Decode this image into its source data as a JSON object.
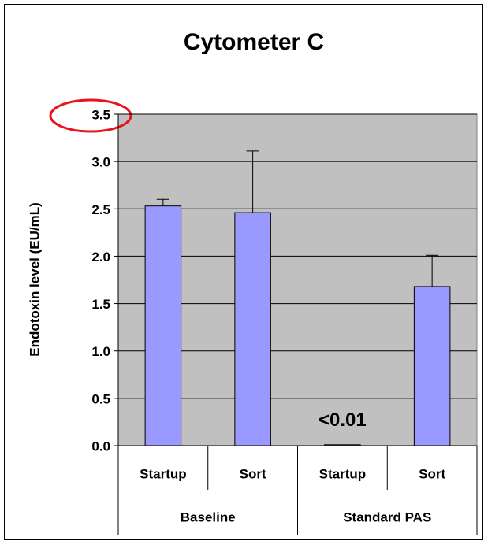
{
  "chart_data": {
    "type": "bar",
    "title": "Cytometer C",
    "y_label": "Endotoxin level (EU/mL)",
    "categories": [
      "Startup",
      "Sort",
      "Startup",
      "Sort"
    ],
    "groups": [
      "Baseline",
      "Standard PAS"
    ],
    "values": [
      2.53,
      2.46,
      0.01,
      1.68
    ],
    "errors": [
      0.07,
      0.65,
      null,
      0.33
    ],
    "value_labels": [
      null,
      null,
      "<0.01",
      null
    ],
    "color": "#9999ff",
    "ylim": [
      0,
      3.5
    ],
    "yticks": [
      {
        "value": 0,
        "label": "0.0"
      },
      {
        "value": 0.5,
        "label": "0.5"
      },
      {
        "value": 1,
        "label": "1.0"
      },
      {
        "value": 1.5,
        "label": "1.5"
      },
      {
        "value": 2,
        "label": "2.0"
      },
      {
        "value": 2.5,
        "label": "2.5"
      },
      {
        "value": 3,
        "label": "3.0"
      },
      {
        "value": 3.5,
        "label": "3.5"
      }
    ],
    "grid": true
  }
}
